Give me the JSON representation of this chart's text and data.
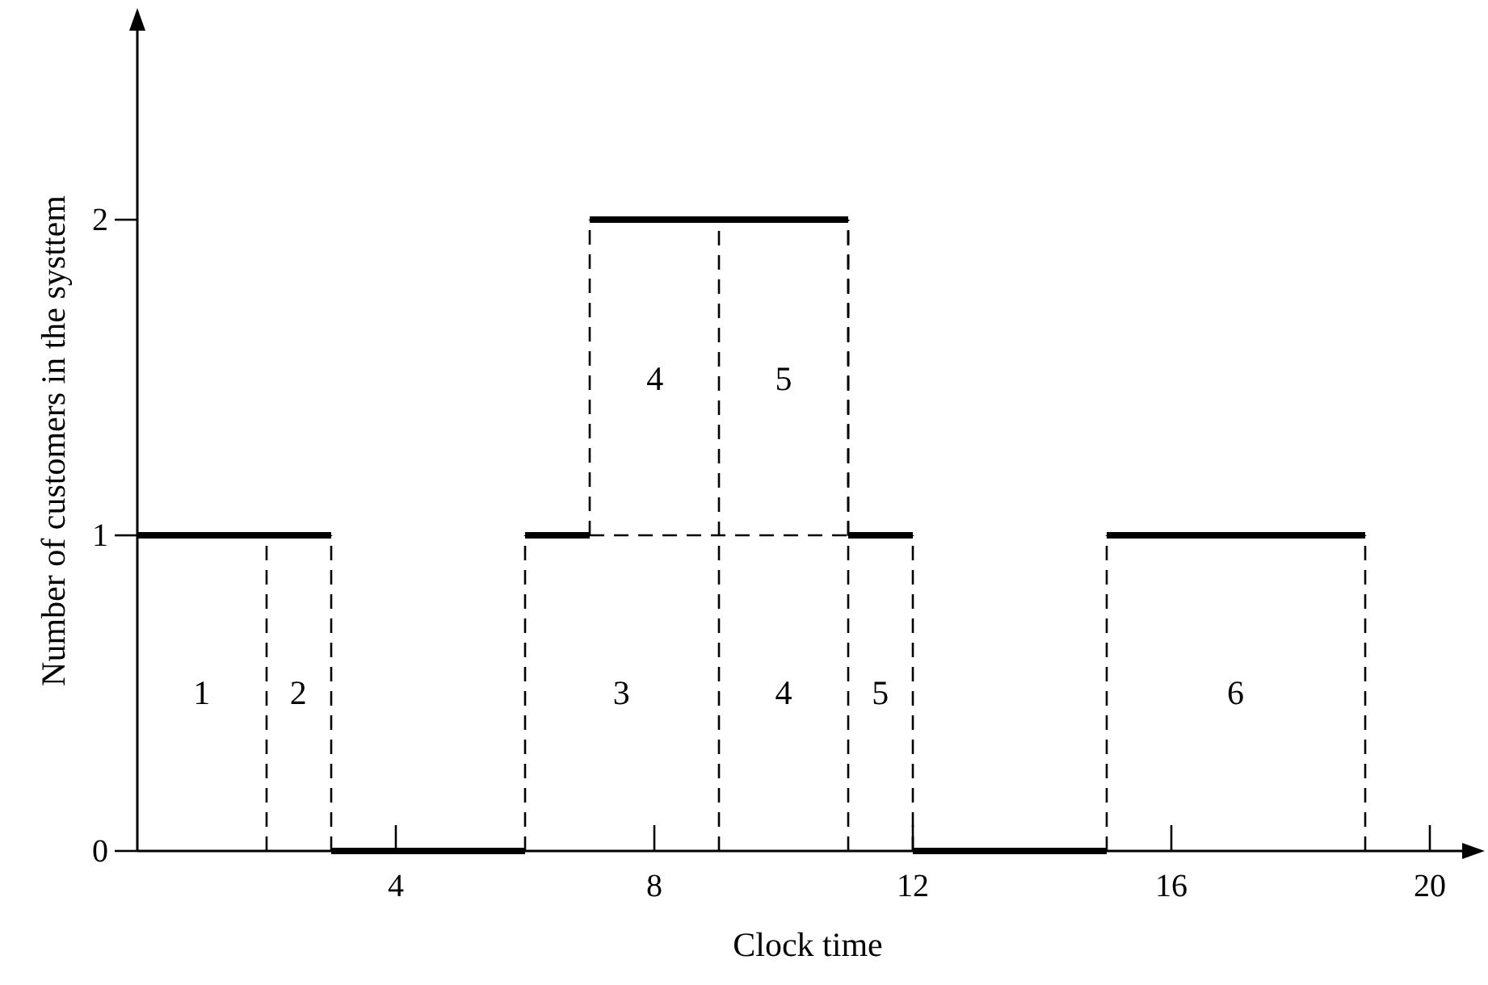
{
  "chart_data": {
    "type": "step",
    "xlabel": "Clock time",
    "ylabel": "Number of customers in the systtem",
    "xlim": [
      0,
      20.75
    ],
    "xticks": [
      4,
      8,
      12,
      16,
      20
    ],
    "ylim": [
      0,
      2.65
    ],
    "yticks": [
      0,
      1,
      2
    ],
    "grid": false,
    "series": [
      {
        "color": "#000000",
        "x": [
          0,
          3,
          6,
          7,
          11,
          12,
          15,
          19
        ],
        "values": [
          1,
          0,
          1,
          2,
          1,
          0,
          1,
          0
        ]
      },
      {
        "type": "line",
        "line_style": "dashed",
        "color": "#000000",
        "x": [
          7,
          11
        ],
        "values": [
          1,
          1
        ]
      }
    ],
    "ref_lines": [
      {
        "axis": "x",
        "value": 2,
        "line_style": "dashed",
        "color": "#000000"
      },
      {
        "axis": "x",
        "value": 9,
        "line_style": "dashed",
        "color": "#000000"
      },
      {
        "axis": "x",
        "value": 11,
        "line_style": "dashed",
        "color": "#000000"
      }
    ],
    "annotations": [
      "1",
      "2",
      "3",
      "4",
      "5",
      "6",
      "4",
      "5"
    ]
  }
}
